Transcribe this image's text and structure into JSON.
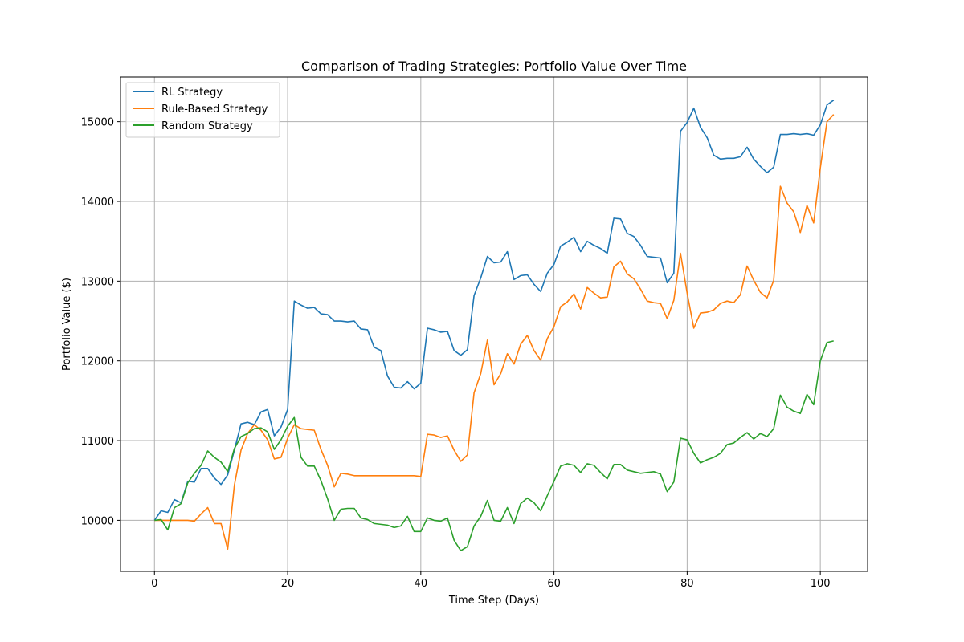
{
  "colors": {
    "rl": "#1f77b4",
    "rule": "#ff7f0e",
    "random": "#2ca02c",
    "grid": "#b0b0b0",
    "axis": "#000000"
  },
  "chart_data": {
    "type": "line",
    "title": "Comparison of Trading Strategies: Portfolio Value Over Time",
    "xlabel": "Time Step (Days)",
    "ylabel": "Portfolio Value ($)",
    "xlim": [
      -5.1,
      107.1
    ],
    "ylim": [
      9360,
      15560
    ],
    "grid": true,
    "legend_position": "top-left",
    "x_ticks": [
      0,
      20,
      40,
      60,
      80,
      100
    ],
    "y_ticks": [
      10000,
      11000,
      12000,
      13000,
      14000,
      15000
    ],
    "x_start": 0,
    "x_step": 1,
    "series": [
      {
        "name": "RL Strategy",
        "color_key": "rl",
        "values": [
          10000,
          10120,
          10100,
          10260,
          10220,
          10490,
          10480,
          10650,
          10650,
          10530,
          10450,
          10570,
          10880,
          11210,
          11230,
          11200,
          11360,
          11390,
          11060,
          11170,
          11390,
          12750,
          12700,
          12660,
          12670,
          12590,
          12580,
          12500,
          12500,
          12490,
          12500,
          12400,
          12390,
          12170,
          12130,
          11810,
          11670,
          11660,
          11740,
          11650,
          11720,
          12410,
          12390,
          12360,
          12370,
          12130,
          12070,
          12140,
          12820,
          13040,
          13310,
          13230,
          13240,
          13370,
          13020,
          13070,
          13080,
          12960,
          12870,
          13100,
          13210,
          13440,
          13490,
          13550,
          13370,
          13500,
          13450,
          13410,
          13350,
          13790,
          13780,
          13600,
          13560,
          13450,
          13310,
          13300,
          13290,
          12980,
          13100,
          14880,
          14990,
          15170,
          14930,
          14800,
          14580,
          14530,
          14540,
          14540,
          14560,
          14680,
          14530,
          14440,
          14360,
          14430,
          14840,
          14840,
          14850,
          14840,
          14850,
          14830,
          14960,
          15210,
          15270
        ]
      },
      {
        "name": "Rule-Based Strategy",
        "color_key": "rule",
        "values": [
          10000,
          10000,
          10000,
          10000,
          10000,
          10000,
          9990,
          10080,
          10160,
          9960,
          9960,
          9640,
          10440,
          10880,
          11090,
          11200,
          11130,
          11010,
          10770,
          10790,
          11030,
          11200,
          11150,
          11140,
          11130,
          10890,
          10690,
          10420,
          10590,
          10580,
          10560,
          10560,
          10560,
          10560,
          10560,
          10560,
          10560,
          10560,
          10560,
          10560,
          10550,
          11080,
          11070,
          11040,
          11060,
          10880,
          10740,
          10820,
          11600,
          11840,
          12260,
          11700,
          11840,
          12090,
          11960,
          12210,
          12320,
          12130,
          12010,
          12280,
          12430,
          12680,
          12740,
          12840,
          12650,
          12920,
          12850,
          12790,
          12800,
          13180,
          13250,
          13090,
          13030,
          12900,
          12750,
          12730,
          12720,
          12530,
          12760,
          13350,
          12850,
          12410,
          12600,
          12610,
          12640,
          12720,
          12750,
          12730,
          12830,
          13190,
          13010,
          12860,
          12790,
          13010,
          14190,
          13980,
          13870,
          13610,
          13950,
          13730,
          14420,
          15000,
          15090
        ]
      },
      {
        "name": "Random Strategy",
        "color_key": "random",
        "values": [
          10000,
          10010,
          9880,
          10160,
          10210,
          10470,
          10590,
          10690,
          10870,
          10790,
          10730,
          10610,
          10900,
          11050,
          11090,
          11150,
          11160,
          11110,
          10890,
          11010,
          11180,
          11290,
          10790,
          10680,
          10680,
          10500,
          10270,
          10000,
          10140,
          10150,
          10150,
          10030,
          10010,
          9960,
          9950,
          9940,
          9910,
          9930,
          10050,
          9860,
          9860,
          10030,
          10000,
          9990,
          10030,
          9750,
          9620,
          9670,
          9930,
          10050,
          10250,
          10000,
          9990,
          10160,
          9960,
          10210,
          10280,
          10220,
          10120,
          10310,
          10490,
          10680,
          10710,
          10690,
          10600,
          10710,
          10690,
          10600,
          10520,
          10700,
          10700,
          10630,
          10610,
          10590,
          10600,
          10610,
          10580,
          10360,
          10480,
          11030,
          11010,
          10840,
          10720,
          10760,
          10790,
          10840,
          10950,
          10970,
          11040,
          11100,
          11020,
          11090,
          11050,
          11150,
          11570,
          11420,
          11370,
          11340,
          11580,
          11450,
          12000,
          12230,
          12250
        ]
      }
    ]
  }
}
